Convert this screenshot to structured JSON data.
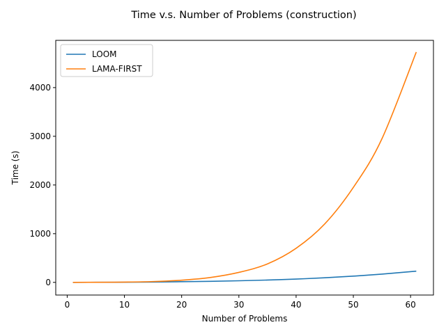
{
  "chart_data": {
    "type": "line",
    "title": "Time v.s. Number of Problems (construction)",
    "xlabel": "Number of Problems",
    "ylabel": "Time (s)",
    "xlim": [
      -2,
      64
    ],
    "ylim": [
      -260,
      4970
    ],
    "xticks": [
      0,
      10,
      20,
      30,
      40,
      50,
      60
    ],
    "yticks": [
      0,
      1000,
      2000,
      3000,
      4000
    ],
    "grid": false,
    "legend_position": "top-left",
    "series": [
      {
        "name": "LOOM",
        "color": "#1f77b4",
        "x": [
          1,
          5,
          10,
          15,
          20,
          25,
          30,
          35,
          40,
          45,
          50,
          55,
          61
        ],
        "y": [
          0,
          1,
          3,
          7,
          14,
          22,
          33,
          48,
          68,
          95,
          128,
          170,
          230
        ]
      },
      {
        "name": "LAMA-FIRST",
        "color": "#ff7f0e",
        "x": [
          1,
          5,
          10,
          15,
          20,
          25,
          30,
          35,
          40,
          45,
          50,
          55,
          61
        ],
        "y": [
          0,
          2,
          6,
          17,
          45,
          100,
          205,
          380,
          700,
          1200,
          1950,
          2950,
          4730
        ]
      }
    ]
  }
}
